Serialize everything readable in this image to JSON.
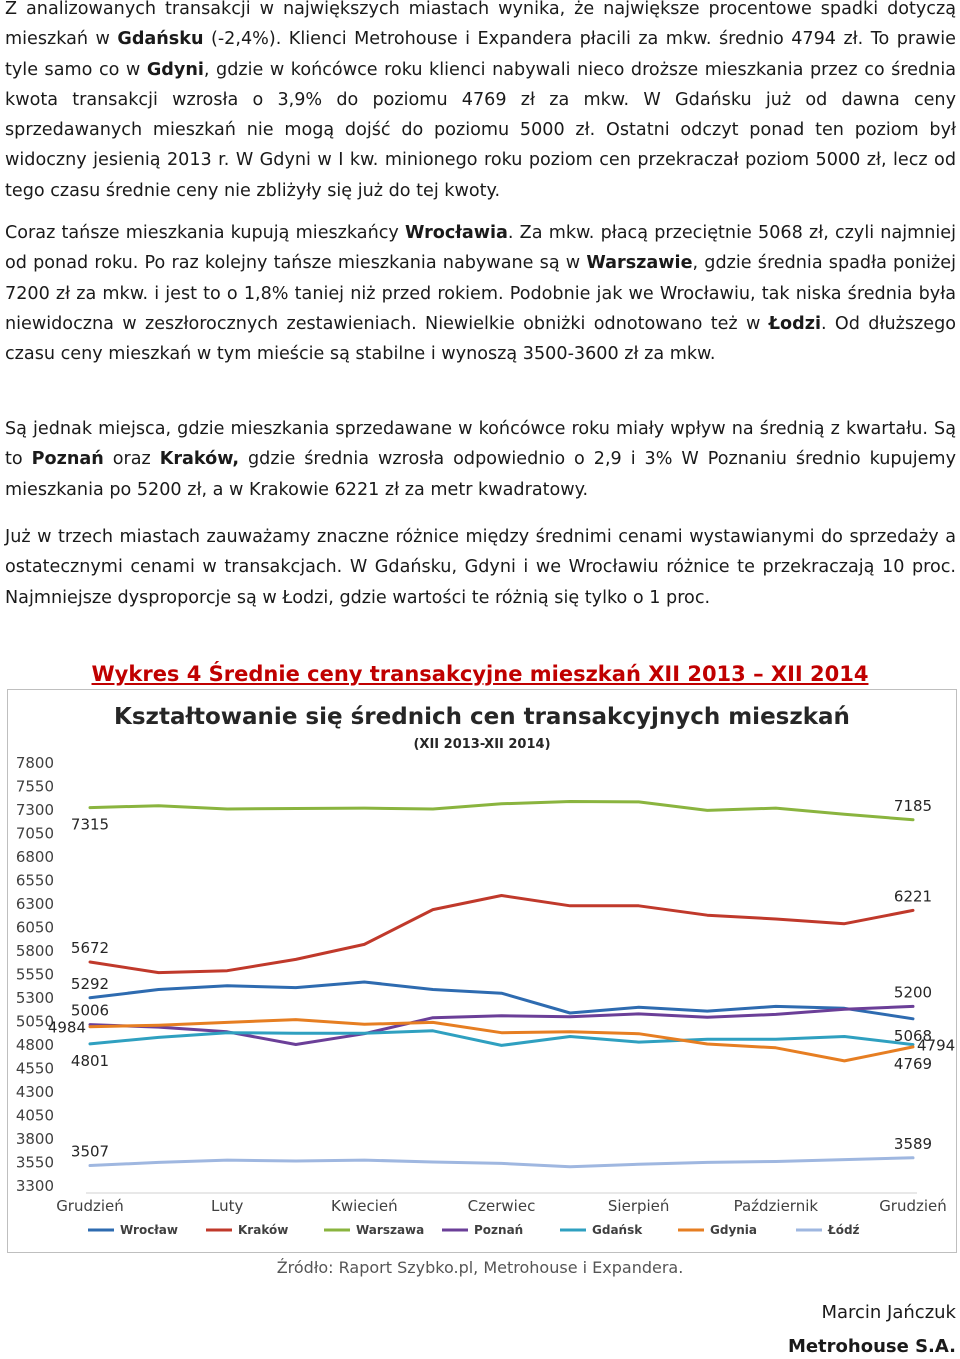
{
  "paragraphs": {
    "p1": [
      {
        "t": "Z analizowanych transakcji w największych miastach wynika, że największe procentowe spadki dotyczą mieszkań w "
      },
      {
        "t": "Gdańsku",
        "b": true
      },
      {
        "t": " (-2,4%). Klienci Metrohouse i Expandera płacili za mkw. średnio 4794 zł. To prawie tyle samo co w "
      },
      {
        "t": "Gdyni",
        "b": true
      },
      {
        "t": ", gdzie w końcówce roku klienci nabywali nieco droższe mieszkania przez co średnia kwota transakcji wzrosła o 3,9% do poziomu 4769 zł za mkw. W Gdańsku już od dawna ceny sprzedawanych mieszkań nie mogą dojść do poziomu 5000 zł. Ostatni odczyt ponad ten poziom był widoczny jesienią 2013 r. W Gdyni w I kw. minionego roku poziom cen przekraczał poziom 5000 zł, lecz od tego czasu średnie ceny nie zbliżyły się już do tej kwoty."
      }
    ],
    "p2": [
      {
        "t": "Coraz tańsze mieszkania kupują mieszkańcy "
      },
      {
        "t": "Wrocławia",
        "b": true
      },
      {
        "t": ". Za mkw. płacą przeciętnie 5068 zł, czyli najmniej od ponad roku. Po raz kolejny tańsze mieszkania nabywane są w "
      },
      {
        "t": "Warszawie",
        "b": true
      },
      {
        "t": ", gdzie średnia spadła poniżej 7200 zł za mkw. i jest to o 1,8% taniej niż przed rokiem. Podobnie jak we Wrocławiu, tak niska średnia była niewidoczna w zeszłorocznych zestawieniach. Niewielkie obniżki odnotowano też w "
      },
      {
        "t": "Łodzi",
        "b": true
      },
      {
        "t": ". Od dłuższego czasu ceny mieszkań w tym mieście są stabilne i wynoszą 3500-3600 zł za mkw."
      }
    ],
    "p3": [
      {
        "t": "Są jednak miejsca, gdzie mieszkania sprzedawane w końcówce roku miały wpływ na średnią z kwartału. Są to "
      },
      {
        "t": "Poznań",
        "b": true
      },
      {
        "t": " oraz "
      },
      {
        "t": "Kraków,",
        "b": true
      },
      {
        "t": " gdzie średnia wzrosła odpowiednio o 2,9 i 3% W Poznaniu średnio kupujemy mieszkania po 5200 zł, a w Krakowie 6221 zł za metr kwadratowy."
      }
    ],
    "p4": [
      {
        "t": "Już w trzech miastach zauważamy znaczne różnice między średnimi cenami wystawianymi do sprzedaży a ostatecznymi cenami w transakcjach. W Gdańsku, Gdyni i we Wrocławiu różnice te przekraczają 10 proc. Najmniejsze dysproporcje są w Łodzi, gdzie wartości te różnią się tylko o 1 proc."
      }
    ]
  },
  "figure": {
    "caption": "Wykres 4 Średnie ceny transakcyjne mieszkań XII 2013 – XII 2014",
    "source": "Źródło: Raport Szybko.pl, Metrohouse i Expandera."
  },
  "signature": {
    "name": "Marcin Jańczuk",
    "company": "Metrohouse S.A."
  },
  "chart_data": {
    "type": "line",
    "title": "Kształtowanie się średnich cen transakcyjnych mieszkań",
    "subtitle": "(XII 2013-XII 2014)",
    "x_labels": [
      "Grudzień",
      "",
      "Luty",
      "",
      "Kwiecień",
      "",
      "Czerwiec",
      "",
      "Sierpień",
      "",
      "Październik",
      "",
      "Grudzień"
    ],
    "ylim": [
      3300,
      7800
    ],
    "yticks": [
      3300,
      3550,
      3800,
      4050,
      4300,
      4550,
      4800,
      5050,
      5300,
      5550,
      5800,
      6050,
      6300,
      6550,
      6800,
      7050,
      7300,
      7550,
      7800
    ],
    "grid": false,
    "legend_position": "bottom",
    "series": [
      {
        "name": "Wrocław",
        "color": "#2e6bb0",
        "values": [
          5292,
          5380,
          5420,
          5400,
          5460,
          5380,
          5340,
          5130,
          5190,
          5150,
          5200,
          5180,
          5068
        ]
      },
      {
        "name": "Kraków",
        "color": "#c0392b",
        "values": [
          5672,
          5560,
          5580,
          5700,
          5860,
          6230,
          6380,
          6270,
          6270,
          6170,
          6130,
          6080,
          6221
        ]
      },
      {
        "name": "Warszawa",
        "color": "#8ab43f",
        "values": [
          7315,
          7335,
          7300,
          7305,
          7310,
          7300,
          7355,
          7380,
          7375,
          7285,
          7310,
          7245,
          7185
        ]
      },
      {
        "name": "Poznań",
        "color": "#6b3f98",
        "values": [
          5006,
          4980,
          4930,
          4795,
          4910,
          5080,
          5100,
          5090,
          5120,
          5085,
          5115,
          5170,
          5200
        ]
      },
      {
        "name": "Gdańsk",
        "color": "#2fa0c0",
        "values": [
          4801,
          4870,
          4920,
          4915,
          4915,
          4940,
          4785,
          4880,
          4820,
          4850,
          4850,
          4880,
          4794
        ]
      },
      {
        "name": "Gdynia",
        "color": "#e67e22",
        "values": [
          4984,
          5000,
          5030,
          5060,
          5010,
          5030,
          4920,
          4930,
          4910,
          4800,
          4760,
          4620,
          4769
        ]
      },
      {
        "name": "Łódź",
        "color": "#9fb7e0",
        "values": [
          3507,
          3540,
          3565,
          3555,
          3565,
          3545,
          3530,
          3495,
          3520,
          3540,
          3550,
          3570,
          3589
        ]
      }
    ],
    "annotations": [
      {
        "label": "7315",
        "series": "Warszawa",
        "index": 0,
        "pos": "below"
      },
      {
        "label": "5672",
        "series": "Kraków",
        "index": 0,
        "pos": "above"
      },
      {
        "label": "5292",
        "series": "Wrocław",
        "index": 0,
        "pos": "above"
      },
      {
        "label": "5006",
        "series": "Poznań",
        "index": 0,
        "pos": "above"
      },
      {
        "label": "4984",
        "series": "Gdynia",
        "index": 0,
        "pos": "left"
      },
      {
        "label": "4801",
        "series": "Gdańsk",
        "index": 0,
        "pos": "below"
      },
      {
        "label": "3507",
        "series": "Łódź",
        "index": 0,
        "pos": "above"
      },
      {
        "label": "7185",
        "series": "Warszawa",
        "index": 12,
        "pos": "above"
      },
      {
        "label": "6221",
        "series": "Kraków",
        "index": 12,
        "pos": "above"
      },
      {
        "label": "5200",
        "series": "Poznań",
        "index": 12,
        "pos": "above"
      },
      {
        "label": "5068",
        "series": "Wrocław",
        "index": 12,
        "pos": "below"
      },
      {
        "label": "4794",
        "series": "Gdańsk",
        "index": 12,
        "pos": "right"
      },
      {
        "label": "4769",
        "series": "Gdynia",
        "index": 12,
        "pos": "below"
      },
      {
        "label": "3589",
        "series": "Łódź",
        "index": 12,
        "pos": "above"
      }
    ]
  }
}
